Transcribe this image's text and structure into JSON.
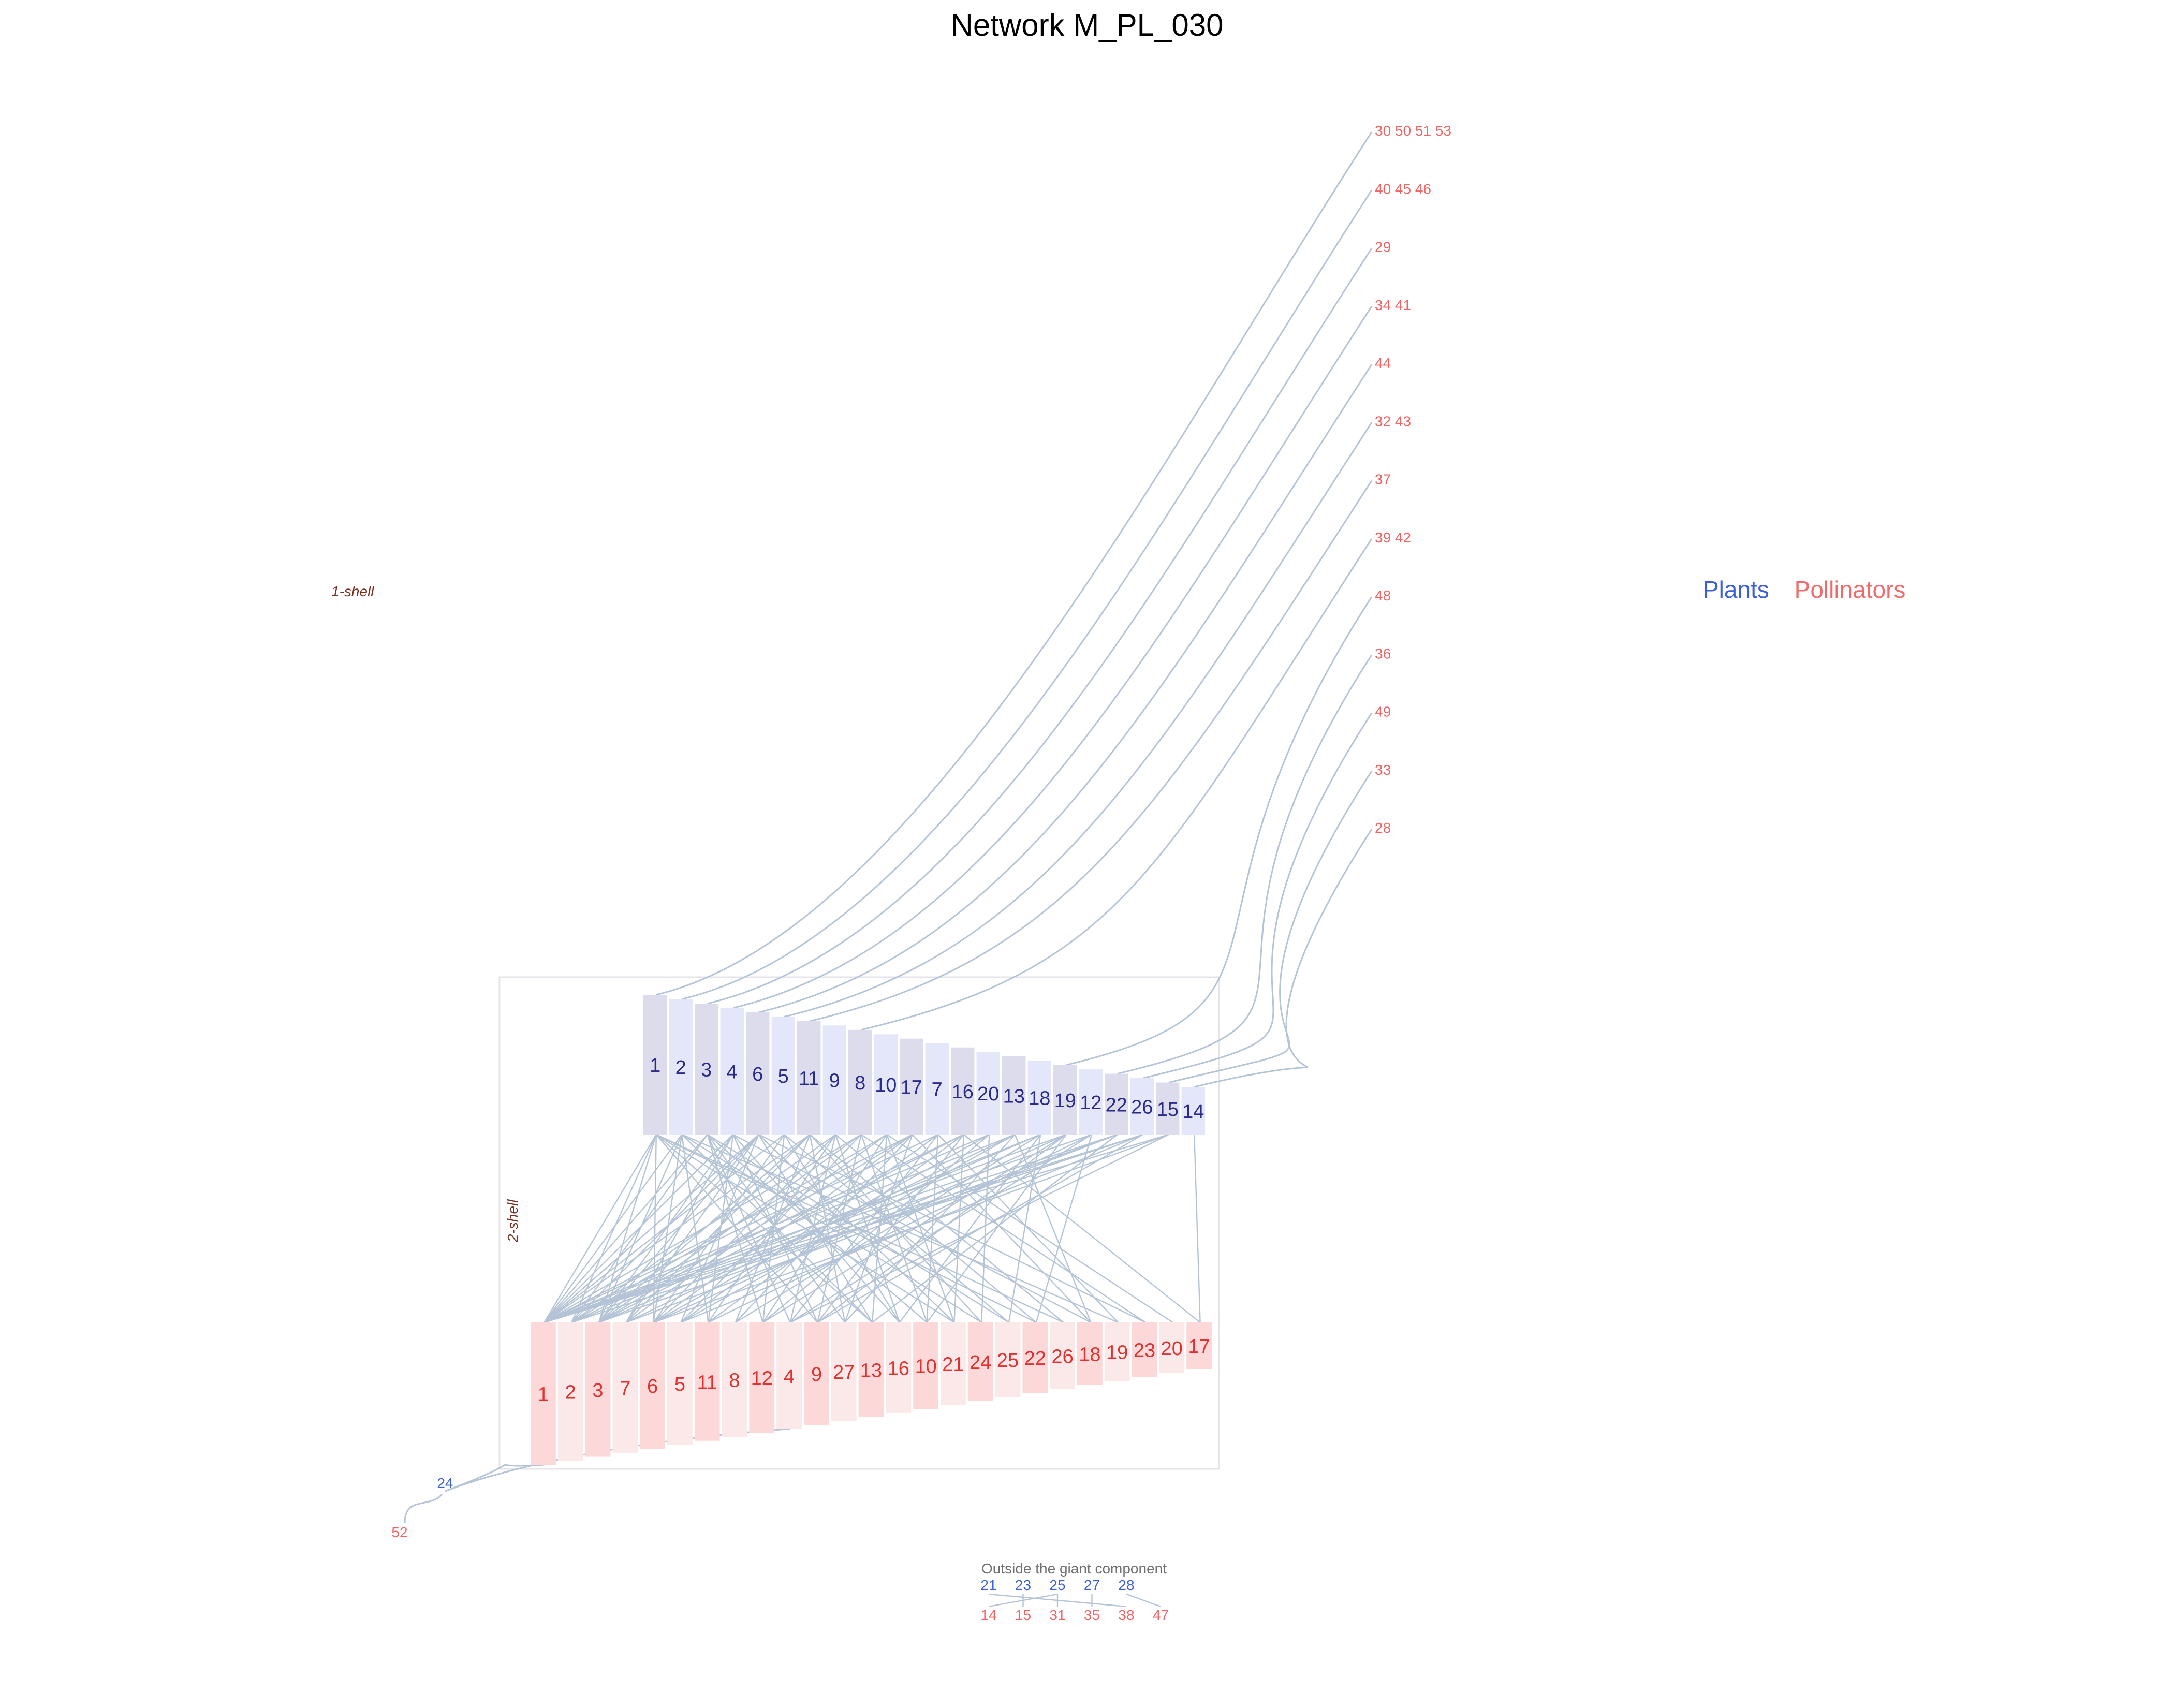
{
  "title": "Network M_PL_030",
  "legend": {
    "plants": "Plants",
    "pollinators": "Pollinators"
  },
  "shell_labels": {
    "outer": "1-shell",
    "inner": "2-shell"
  },
  "outside_label": "Outside the giant component",
  "colors": {
    "plant_text": "#2b2b8c",
    "plant_fill_a": "#dcdcec",
    "plant_fill_b": "#e4e6fa",
    "pollinator_text": "#e03030",
    "pollinator_fill_a": "#fdd8d8",
    "pollinator_fill_b": "#fbe8e8",
    "legend_plants": "#3a5fd8",
    "legend_pollinators": "#f06a6a",
    "leaf_pollinator": "#f06464",
    "leaf_plant": "#3a5fd8",
    "link": "#b4c4d6",
    "shell_label": "#7a3020",
    "box_border": "#e4e4ea",
    "outside_label": "#707070"
  },
  "core_plants": [
    "1",
    "2",
    "3",
    "4",
    "6",
    "5",
    "11",
    "9",
    "8",
    "10",
    "17",
    "7",
    "16",
    "20",
    "13",
    "18",
    "19",
    "12",
    "22",
    "26",
    "15",
    "14"
  ],
  "core_pollinators": [
    "1",
    "2",
    "3",
    "7",
    "6",
    "5",
    "11",
    "8",
    "12",
    "4",
    "9",
    "27",
    "13",
    "16",
    "10",
    "21",
    "24",
    "25",
    "22",
    "26",
    "18",
    "19",
    "23",
    "20",
    "17"
  ],
  "peripheral_pollinators": [
    {
      "label": "30 50  51 53",
      "plant": "1"
    },
    {
      "label": "40 45  46",
      "plant": "2"
    },
    {
      "label": "29",
      "plant": "3"
    },
    {
      "label": "34  41",
      "plant": "4"
    },
    {
      "label": "44",
      "plant": "6"
    },
    {
      "label": "32  43",
      "plant": "5"
    },
    {
      "label": "37",
      "plant": "11"
    },
    {
      "label": "39  42",
      "plant": "8"
    },
    {
      "label": "48",
      "plant": "19"
    },
    {
      "label": "36",
      "plant": "22"
    },
    {
      "label": "49",
      "plant": "26"
    },
    {
      "label": "33",
      "plant": "15"
    },
    {
      "label": "28",
      "plant": "14"
    }
  ],
  "chain": {
    "plant": "24",
    "pollinator": "52",
    "core_pollinators": [
      "1",
      "4"
    ]
  },
  "outside": {
    "plants": [
      "21",
      "23",
      "25",
      "27",
      "28"
    ],
    "pollinators": [
      "14",
      "15",
      "31",
      "35",
      "38",
      "47"
    ],
    "links": [
      [
        "21",
        "38"
      ],
      [
        "23",
        "15"
      ],
      [
        "25",
        "14"
      ],
      [
        "25",
        "31"
      ],
      [
        "27",
        "35"
      ],
      [
        "28",
        "47"
      ]
    ]
  },
  "core_links": [
    [
      "1",
      "1"
    ],
    [
      "1",
      "2"
    ],
    [
      "1",
      "3"
    ],
    [
      "1",
      "6"
    ],
    [
      "1",
      "9"
    ],
    [
      "1",
      "13"
    ],
    [
      "1",
      "21"
    ],
    [
      "1",
      "22"
    ],
    [
      "1",
      "26"
    ],
    [
      "2",
      "1"
    ],
    [
      "2",
      "3"
    ],
    [
      "2",
      "6"
    ],
    [
      "2",
      "11"
    ],
    [
      "2",
      "13"
    ],
    [
      "2",
      "24"
    ],
    [
      "2",
      "19"
    ],
    [
      "3",
      "1"
    ],
    [
      "3",
      "2"
    ],
    [
      "3",
      "12"
    ],
    [
      "3",
      "4"
    ],
    [
      "3",
      "27"
    ],
    [
      "3",
      "10"
    ],
    [
      "3",
      "25"
    ],
    [
      "4",
      "1"
    ],
    [
      "4",
      "3"
    ],
    [
      "4",
      "7"
    ],
    [
      "4",
      "11"
    ],
    [
      "4",
      "9"
    ],
    [
      "4",
      "16"
    ],
    [
      "4",
      "18"
    ],
    [
      "6",
      "1"
    ],
    [
      "6",
      "2"
    ],
    [
      "6",
      "3"
    ],
    [
      "6",
      "7"
    ],
    [
      "6",
      "5"
    ],
    [
      "6",
      "13"
    ],
    [
      "6",
      "21"
    ],
    [
      "6",
      "23"
    ],
    [
      "5",
      "1"
    ],
    [
      "5",
      "6"
    ],
    [
      "5",
      "12"
    ],
    [
      "5",
      "16"
    ],
    [
      "5",
      "25"
    ],
    [
      "11",
      "1"
    ],
    [
      "11",
      "3"
    ],
    [
      "11",
      "7"
    ],
    [
      "11",
      "8"
    ],
    [
      "11",
      "27"
    ],
    [
      "11",
      "24"
    ],
    [
      "11",
      "22"
    ],
    [
      "9",
      "2"
    ],
    [
      "9",
      "6"
    ],
    [
      "9",
      "11"
    ],
    [
      "9",
      "4"
    ],
    [
      "9",
      "16"
    ],
    [
      "9",
      "26"
    ],
    [
      "8",
      "1"
    ],
    [
      "8",
      "3"
    ],
    [
      "8",
      "5"
    ],
    [
      "8",
      "9"
    ],
    [
      "8",
      "10"
    ],
    [
      "8",
      "23"
    ],
    [
      "10",
      "2"
    ],
    [
      "10",
      "7"
    ],
    [
      "10",
      "12"
    ],
    [
      "10",
      "13"
    ],
    [
      "10",
      "21"
    ],
    [
      "10",
      "20"
    ],
    [
      "17",
      "1"
    ],
    [
      "17",
      "3"
    ],
    [
      "17",
      "6"
    ],
    [
      "17",
      "8"
    ],
    [
      "17",
      "27"
    ],
    [
      "17",
      "18"
    ],
    [
      "7",
      "1"
    ],
    [
      "7",
      "5"
    ],
    [
      "7",
      "4"
    ],
    [
      "7",
      "10"
    ],
    [
      "7",
      "19"
    ],
    [
      "16",
      "2"
    ],
    [
      "16",
      "3"
    ],
    [
      "16",
      "11"
    ],
    [
      "16",
      "9"
    ],
    [
      "16",
      "21"
    ],
    [
      "16",
      "17"
    ],
    [
      "20",
      "1"
    ],
    [
      "20",
      "6"
    ],
    [
      "20",
      "12"
    ],
    [
      "20",
      "24"
    ],
    [
      "13",
      "1"
    ],
    [
      "13",
      "7"
    ],
    [
      "13",
      "5"
    ],
    [
      "13",
      "27"
    ],
    [
      "13",
      "18"
    ],
    [
      "18",
      "2"
    ],
    [
      "18",
      "3"
    ],
    [
      "18",
      "8"
    ],
    [
      "18",
      "16"
    ],
    [
      "18",
      "25"
    ],
    [
      "19",
      "1"
    ],
    [
      "19",
      "6"
    ],
    [
      "19",
      "12"
    ],
    [
      "19",
      "9"
    ],
    [
      "19",
      "10"
    ],
    [
      "12",
      "1"
    ],
    [
      "12",
      "11"
    ],
    [
      "12",
      "4"
    ],
    [
      "12",
      "22"
    ],
    [
      "22",
      "1"
    ],
    [
      "22",
      "3"
    ],
    [
      "22",
      "7"
    ],
    [
      "22",
      "13"
    ],
    [
      "26",
      "1"
    ],
    [
      "26",
      "2"
    ],
    [
      "26",
      "5"
    ],
    [
      "26",
      "9"
    ],
    [
      "15",
      "1"
    ],
    [
      "15",
      "6"
    ],
    [
      "15",
      "4"
    ],
    [
      "14",
      "17"
    ]
  ]
}
